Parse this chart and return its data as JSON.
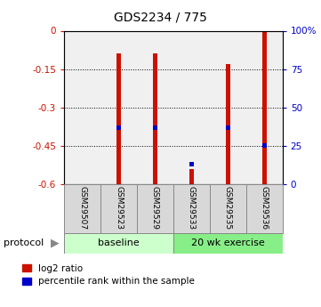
{
  "title": "GDS2234 / 775",
  "samples": [
    "GSM29507",
    "GSM29523",
    "GSM29529",
    "GSM29533",
    "GSM29535",
    "GSM29536"
  ],
  "groups": [
    "baseline",
    "baseline",
    "baseline",
    "20 wk exercise",
    "20 wk exercise",
    "20 wk exercise"
  ],
  "log2_ratio": [
    0.0,
    -0.09,
    -0.09,
    -0.54,
    -0.13,
    -0.002
  ],
  "percentile_rank": [
    null,
    37,
    37,
    13,
    37,
    25
  ],
  "bar_color": "#cc1100",
  "blue_color": "#0000cc",
  "ylim_left": [
    -0.6,
    0.0
  ],
  "ylim_right": [
    0,
    100
  ],
  "yticks_left": [
    0,
    -0.15,
    -0.3,
    -0.45,
    -0.6
  ],
  "yticks_right": [
    100,
    75,
    50,
    25,
    0
  ],
  "group_colors_baseline": "#ccffcc",
  "group_colors_exercise": "#88ee88",
  "bar_width": 0.12,
  "bg_color": "#ffffff",
  "plot_bg": "#f0f0f0",
  "legend_red_label": "log2 ratio",
  "legend_blue_label": "percentile rank within the sample"
}
